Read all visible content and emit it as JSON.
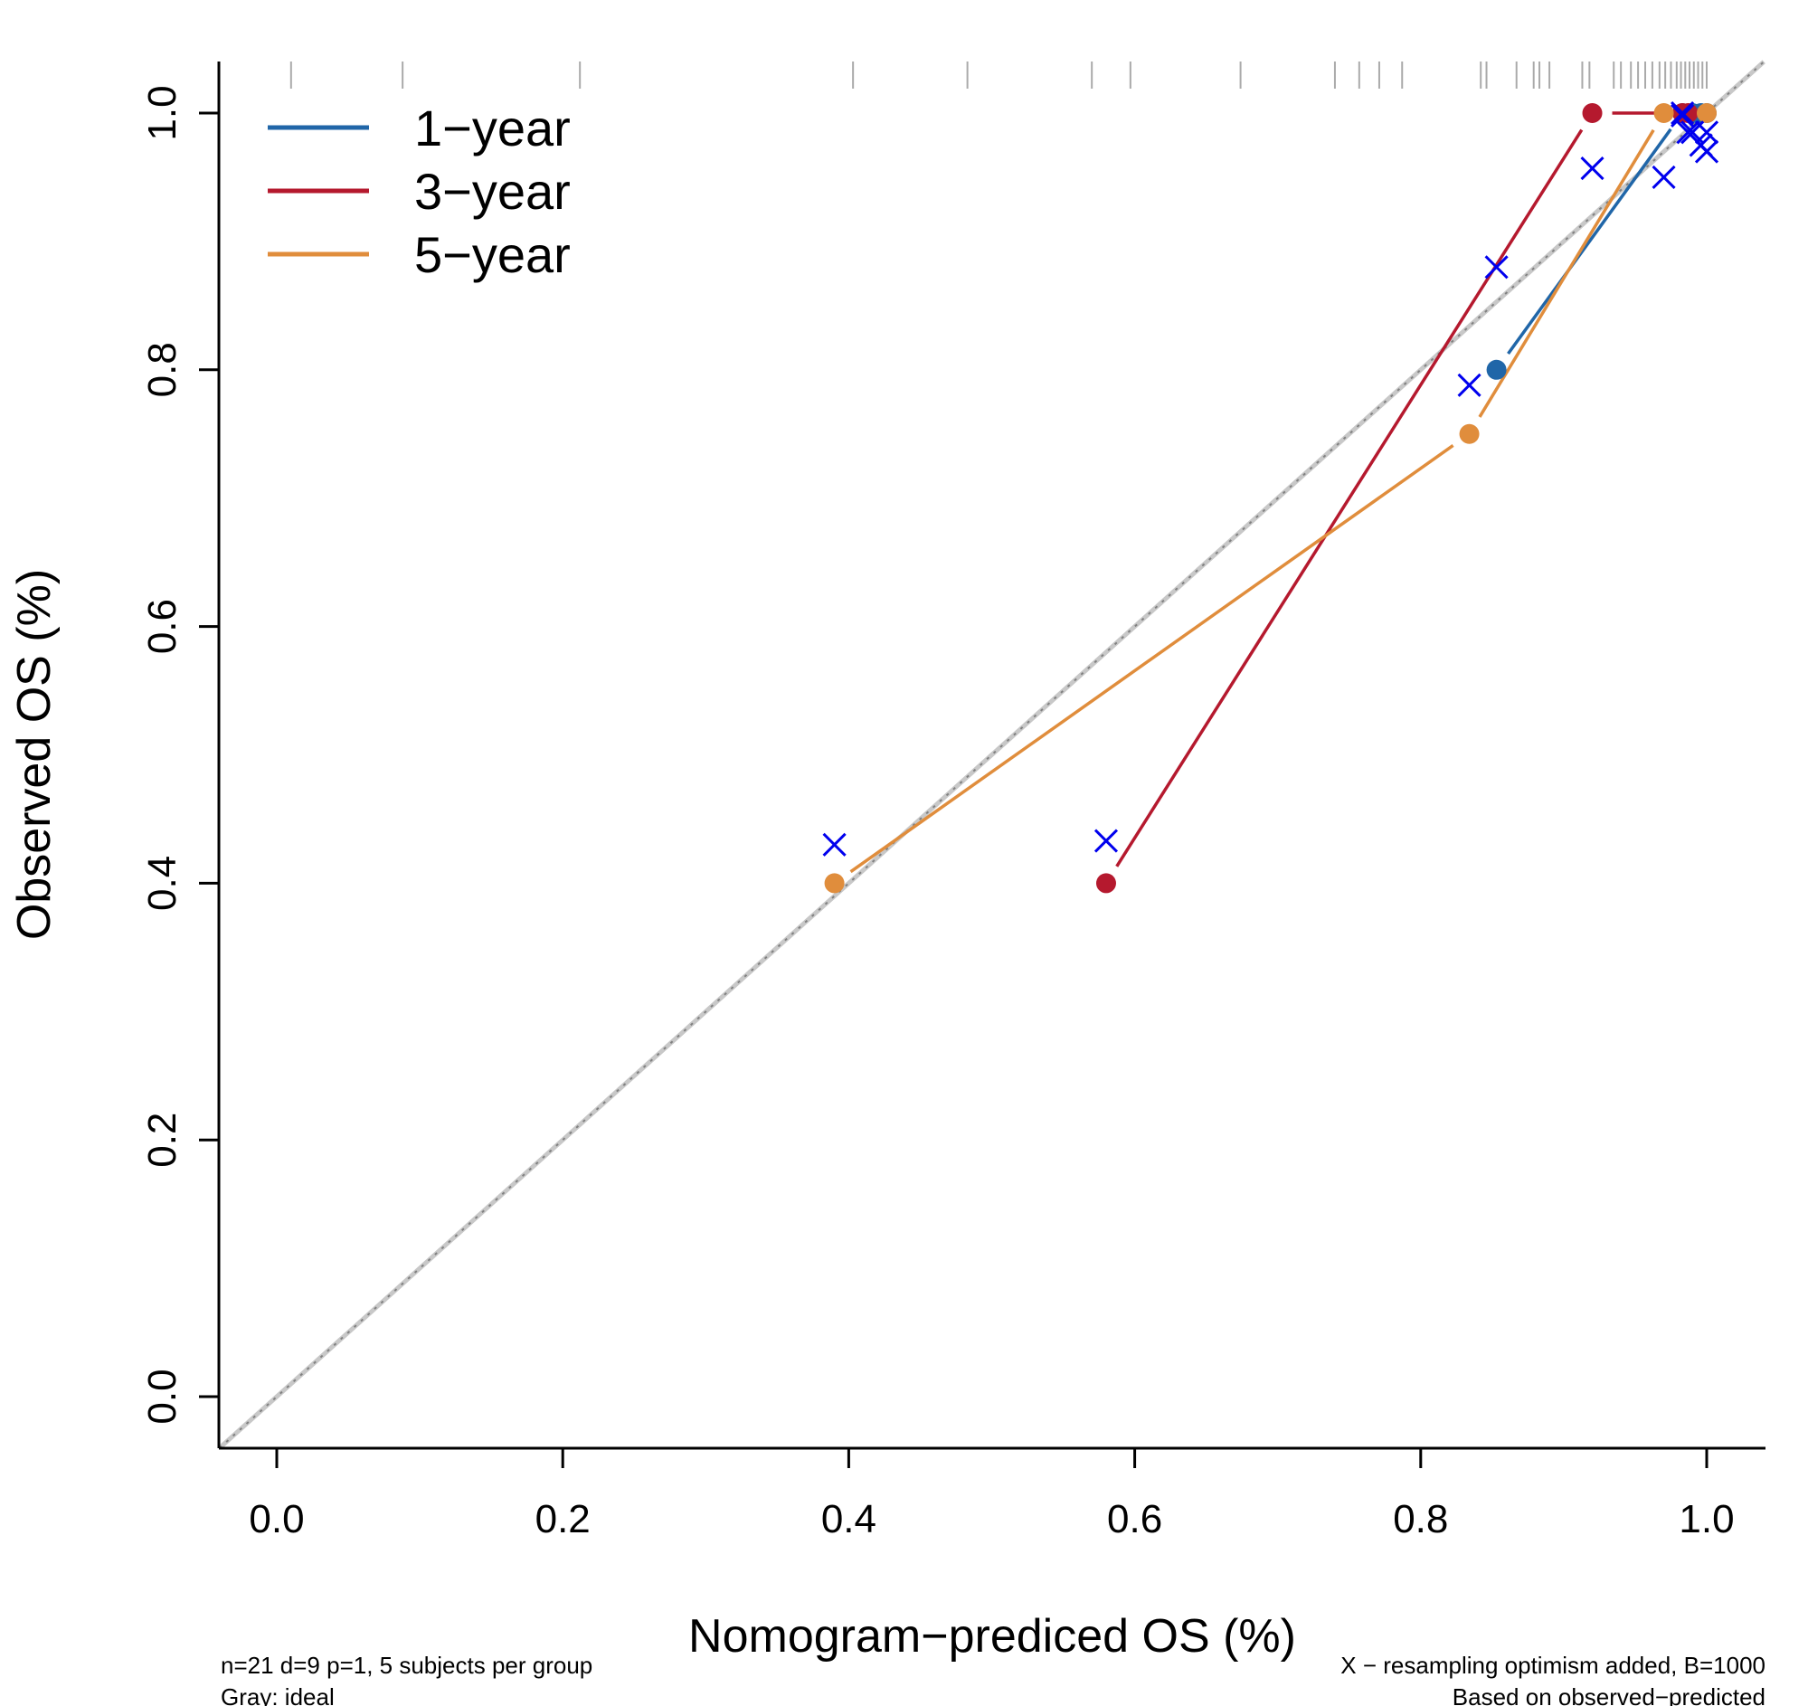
{
  "chart_data": {
    "type": "line",
    "title": "",
    "xlabel": "Nomogram−prediced OS (%)",
    "ylabel": "Observed OS (%)",
    "xlim": [
      -0.04,
      1.04
    ],
    "ylim": [
      -0.04,
      1.04
    ],
    "x_ticks": [
      0.0,
      0.2,
      0.4,
      0.6,
      0.8,
      1.0
    ],
    "x_tick_labels": [
      "0.0",
      "0.2",
      "0.4",
      "0.6",
      "0.8",
      "1.0"
    ],
    "y_ticks": [
      0.0,
      0.2,
      0.4,
      0.6,
      0.8,
      1.0
    ],
    "y_tick_labels": [
      "0.0",
      "0.2",
      "0.4",
      "0.6",
      "0.8",
      "1.0"
    ],
    "legend_position": "top-left",
    "ideal_line": {
      "name": "ideal",
      "color": "#c8c8c8",
      "points": [
        [
          -0.04,
          -0.04
        ],
        [
          1.04,
          1.04
        ]
      ]
    },
    "series": [
      {
        "name": "1−year",
        "color": "#2066a8",
        "x": [
          0.853,
          0.983,
          0.99,
          0.996,
          1.0
        ],
        "y": [
          0.8,
          1.0,
          1.0,
          1.0,
          1.0
        ],
        "resampled_x": [
          0.853,
          0.983,
          0.99,
          0.996,
          1.0
        ],
        "resampled_y": [
          0.88,
          1.0,
          0.985,
          0.975,
          0.97
        ]
      },
      {
        "name": "3−year",
        "color": "#b5192e",
        "x": [
          0.58,
          0.92,
          0.983,
          0.987
        ],
        "y": [
          0.4,
          1.0,
          1.0,
          1.0
        ],
        "resampled_x": [
          0.58,
          0.92,
          0.983,
          0.987
        ],
        "resampled_y": [
          0.433,
          0.957,
          0.998,
          0.985
        ]
      },
      {
        "name": "5−year",
        "color": "#e08d3c",
        "x": [
          0.39,
          0.834,
          0.97,
          1.0
        ],
        "y": [
          0.4,
          0.75,
          1.0,
          1.0
        ],
        "resampled_x": [
          0.39,
          0.834,
          0.97,
          1.0
        ],
        "resampled_y": [
          0.43,
          0.788,
          0.95,
          0.985
        ]
      }
    ],
    "resampled_marker_color": "#0000ee",
    "rug_x": [
      0.01,
      0.088,
      0.212,
      0.403,
      0.483,
      0.57,
      0.597,
      0.674,
      0.74,
      0.757,
      0.771,
      0.787,
      0.842,
      0.846,
      0.867,
      0.879,
      0.883,
      0.89,
      0.913,
      0.918,
      0.935,
      0.94,
      0.947,
      0.952,
      0.957,
      0.962,
      0.967,
      0.971,
      0.975,
      0.979,
      0.982,
      0.985,
      0.988,
      0.991,
      0.994,
      0.997,
      1.0
    ],
    "footnotes": {
      "left_line1": "n=21 d=9 p=1, 5 subjects per group",
      "left_line2": "Gray: ideal",
      "right_line1": "X − resampling optimism added, B=1000",
      "right_line2": "Based on observed−predicted"
    }
  }
}
